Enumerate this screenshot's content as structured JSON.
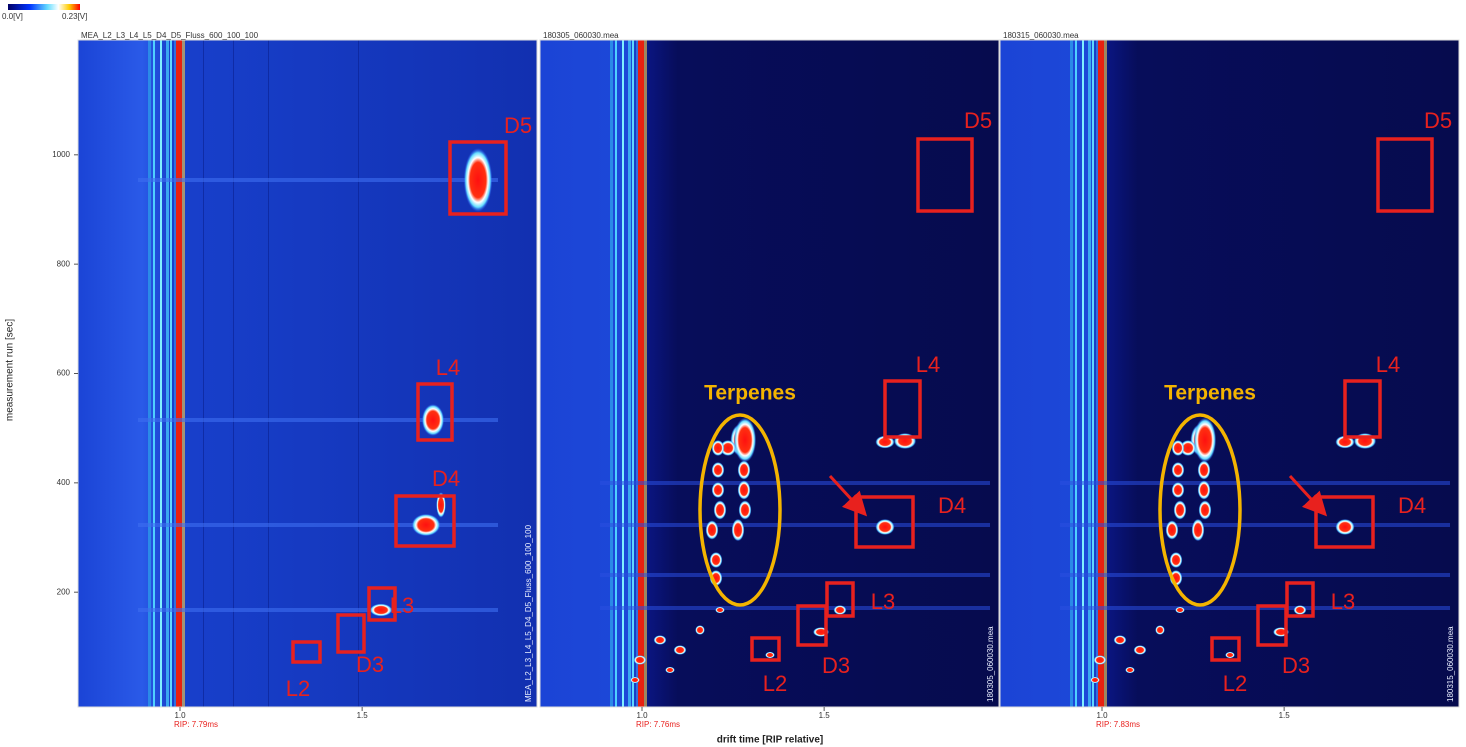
{
  "colorbar": {
    "min_label": "0.0[V]",
    "max_label": "0.23[V]"
  },
  "y_axis": {
    "label": "measurement run [sec]",
    "ylim": [
      -10,
      1210
    ],
    "ticks": [
      200,
      400,
      600,
      800,
      1000
    ]
  },
  "x_axis": {
    "label": "drift time [RIP relative]",
    "xlim": [
      0.72,
      1.98
    ],
    "ticks": [
      {
        "value": 1.0,
        "label": "1.0"
      },
      {
        "value": 1.5,
        "label": "1.5"
      }
    ]
  },
  "panels": [
    {
      "title": "MEA_L2_L3_L4_L5_D4_D5_Fluss_600_100_100",
      "rip_label": "RIP: 7.79ms",
      "side_label": "MEA_L2_L3_L4_L5_D4_D5_Fluss_600_100_100",
      "annotations": [
        "D5",
        "L4",
        "D4",
        "L3",
        "D3",
        "L2"
      ]
    },
    {
      "title": "180305_060030.mea",
      "rip_label": "RIP: 7.76ms",
      "side_label": "180305_060030.mea",
      "annotations": [
        "D5",
        "L4",
        "Terpenes",
        "D4",
        "L3",
        "D3",
        "L2"
      ]
    },
    {
      "title": "180315_060030.mea",
      "rip_label": "RIP: 7.83ms",
      "side_label": "180315_060030.mea",
      "annotations": [
        "D5",
        "L4",
        "Terpenes",
        "D4",
        "L3",
        "D3",
        "L2"
      ]
    }
  ]
}
